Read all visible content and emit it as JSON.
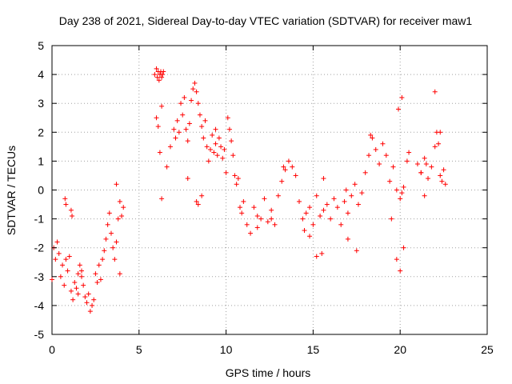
{
  "chart_data": {
    "type": "scatter",
    "title": "Day 238 of 2021, Sidereal Day-to-day VTEC variation (SDTVAR) for receiver maw1",
    "xlabel": "GPS time / hours",
    "ylabel": "SDTVAR / TECUs",
    "xlim": [
      0,
      25
    ],
    "ylim": [
      -5,
      5
    ],
    "xticks": [
      0,
      5,
      10,
      15,
      20,
      25
    ],
    "yticks": [
      -5,
      -4,
      -3,
      -2,
      -1,
      0,
      1,
      2,
      3,
      4,
      5
    ],
    "xtick_labels": [
      "0",
      "5",
      "10",
      "15",
      "20",
      "25"
    ],
    "ytick_labels": [
      "-5",
      "-4",
      "-3",
      "-2",
      "-1",
      "0",
      "1",
      "2",
      "3",
      "4",
      "5"
    ],
    "grid": true,
    "marker": "+",
    "color": "#ff0000",
    "series": [
      {
        "name": "SDTVAR",
        "x": [
          0.0,
          0.1,
          0.2,
          0.3,
          0.4,
          0.5,
          0.6,
          0.7,
          0.8,
          0.9,
          1.0,
          1.1,
          1.2,
          1.3,
          1.4,
          1.5,
          1.6,
          1.7,
          1.8,
          1.9,
          2.0,
          2.1,
          2.2,
          2.3,
          2.4,
          2.5,
          2.6,
          2.7,
          2.8,
          2.9,
          3.0,
          3.1,
          3.2,
          3.3,
          3.4,
          3.5,
          3.6,
          3.7,
          3.8,
          3.9,
          4.0,
          4.1,
          0.75,
          0.8,
          1.1,
          1.15,
          1.5,
          1.7,
          3.7,
          3.9,
          5.9,
          6.0,
          6.05,
          6.1,
          6.15,
          6.2,
          6.25,
          6.3,
          6.35,
          6.4,
          6.0,
          6.1,
          6.2,
          6.3,
          6.6,
          6.8,
          7.0,
          7.1,
          7.2,
          7.3,
          7.4,
          7.5,
          7.6,
          7.7,
          7.8,
          7.9,
          8.0,
          8.1,
          8.2,
          8.3,
          8.4,
          8.5,
          8.6,
          8.7,
          8.8,
          8.9,
          9.0,
          9.1,
          9.2,
          9.3,
          9.4,
          9.5,
          9.6,
          9.7,
          9.8,
          9.9,
          10.0,
          10.1,
          10.2,
          10.3,
          10.4,
          10.5,
          10.6,
          10.7,
          10.8,
          10.9,
          11.0,
          11.2,
          11.4,
          11.6,
          11.8,
          12.0,
          12.2,
          12.4,
          12.6,
          12.8,
          13.0,
          13.2,
          13.4,
          13.6,
          13.8,
          14.0,
          14.2,
          14.4,
          14.6,
          14.8,
          15.0,
          15.2,
          15.4,
          15.6,
          15.8,
          16.0,
          16.2,
          16.4,
          16.6,
          16.8,
          17.0,
          17.2,
          17.4,
          17.6,
          17.8,
          18.0,
          18.2,
          18.4,
          18.6,
          18.8,
          19.0,
          19.2,
          19.4,
          19.6,
          19.8,
          20.0,
          20.1,
          20.2,
          20.5,
          21.0,
          21.2,
          21.4,
          21.6,
          21.8,
          22.0,
          22.1,
          22.2,
          22.3,
          22.4,
          22.5,
          22.6,
          21.2,
          21.4,
          22.0,
          8.3,
          8.6,
          14.8,
          15.2,
          15.5,
          15.6,
          17.0,
          17.5,
          19.8,
          20.0,
          19.9,
          20.1,
          20.2,
          6.3,
          7.8,
          8.4,
          9.4,
          11.8,
          12.6,
          13.3,
          14.5,
          16.9,
          18.3,
          19.5,
          20.4,
          21.5,
          22.3
        ],
        "y": [
          -3.1,
          -2.0,
          -2.4,
          -1.8,
          -2.2,
          -3.0,
          -2.6,
          -3.3,
          -2.4,
          -2.8,
          -2.3,
          -3.5,
          -3.8,
          -3.2,
          -3.4,
          -2.9,
          -2.6,
          -3.0,
          -3.3,
          -3.7,
          -3.9,
          -3.6,
          -4.2,
          -4.0,
          -3.8,
          -2.9,
          -3.2,
          -2.6,
          -3.1,
          -2.4,
          -2.1,
          -1.7,
          -1.2,
          -0.8,
          -1.5,
          -2.0,
          -2.4,
          -1.8,
          -1.0,
          -0.4,
          -0.9,
          -0.6,
          -0.3,
          -0.5,
          -0.7,
          -0.9,
          -3.6,
          -2.8,
          0.2,
          -2.9,
          4.0,
          4.2,
          3.9,
          4.1,
          3.8,
          4.0,
          4.1,
          3.9,
          4.0,
          4.1,
          2.5,
          2.2,
          1.3,
          2.9,
          0.8,
          1.5,
          2.1,
          1.8,
          2.4,
          2.0,
          3.0,
          2.6,
          3.2,
          2.1,
          1.7,
          2.3,
          3.1,
          3.5,
          3.7,
          3.4,
          3.0,
          2.6,
          2.2,
          1.8,
          2.4,
          1.5,
          1.0,
          1.4,
          1.9,
          1.3,
          1.6,
          1.2,
          1.8,
          1.5,
          1.1,
          1.4,
          0.6,
          2.5,
          2.1,
          1.7,
          1.2,
          0.5,
          0.2,
          0.4,
          -0.6,
          -0.8,
          -0.4,
          -1.2,
          -1.5,
          -0.6,
          -0.9,
          -1.0,
          -0.3,
          -1.1,
          -0.7,
          -1.2,
          -0.2,
          0.3,
          0.7,
          1.0,
          0.8,
          0.5,
          -0.4,
          -1.0,
          -0.8,
          -0.6,
          -1.2,
          -0.2,
          -0.9,
          -0.7,
          -0.5,
          -1.0,
          -0.3,
          -0.6,
          -1.2,
          -0.4,
          -0.8,
          -0.2,
          0.2,
          -0.5,
          -0.1,
          0.6,
          1.2,
          1.8,
          1.4,
          0.9,
          1.6,
          1.2,
          0.3,
          0.8,
          0.0,
          -0.3,
          -0.1,
          0.1,
          1.3,
          0.9,
          0.6,
          1.1,
          0.4,
          0.8,
          1.5,
          2.0,
          1.6,
          0.5,
          0.3,
          0.7,
          0.2,
          0.6,
          -0.2,
          3.4,
          -0.4,
          -0.2,
          -1.6,
          -2.3,
          -2.2,
          0.4,
          -1.7,
          -2.1,
          -2.4,
          -2.8,
          2.8,
          3.2,
          -2.0,
          -0.3,
          0.4,
          -0.5,
          2.1,
          -1.3,
          -1.0,
          0.8,
          -1.4,
          0.0,
          1.9,
          -1.0,
          1.0,
          0.9,
          2.0
        ]
      }
    ]
  }
}
